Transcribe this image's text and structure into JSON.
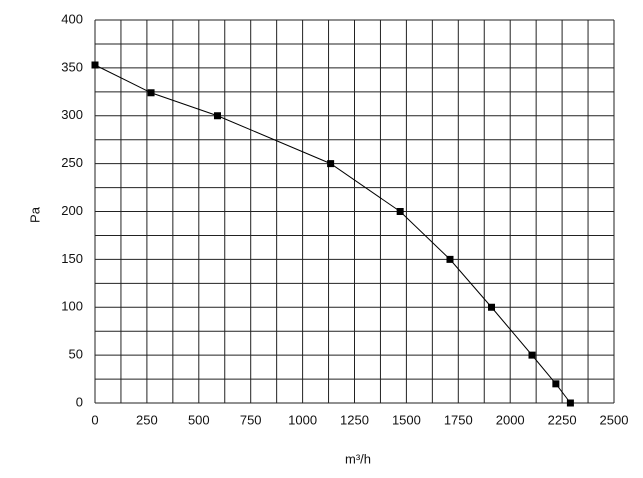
{
  "chart_data": {
    "type": "line",
    "x_label": "m³/h",
    "y_label": "Pa",
    "x": [
      0,
      270,
      590,
      1135,
      1470,
      1710,
      1910,
      2105,
      2220,
      2290
    ],
    "series": [
      {
        "color": "#000000",
        "values": [
          353,
          324,
          300,
          250,
          200,
          150,
          100,
          50,
          20,
          0
        ]
      }
    ],
    "xlim": [
      0,
      2500
    ],
    "ylim": [
      0,
      400
    ],
    "xticks": [
      0,
      250,
      500,
      750,
      1000,
      1250,
      1500,
      1750,
      2000,
      2250,
      2500
    ],
    "yticks": [
      0,
      50,
      100,
      150,
      200,
      250,
      300,
      350,
      400
    ],
    "x_minor_ticks": [
      125,
      375,
      625,
      875,
      1125,
      1375,
      1625,
      1875,
      2125,
      2375
    ],
    "y_minor_ticks": [
      25,
      75,
      125,
      175,
      225,
      275,
      325,
      375
    ],
    "grid": true,
    "markers": "square"
  }
}
